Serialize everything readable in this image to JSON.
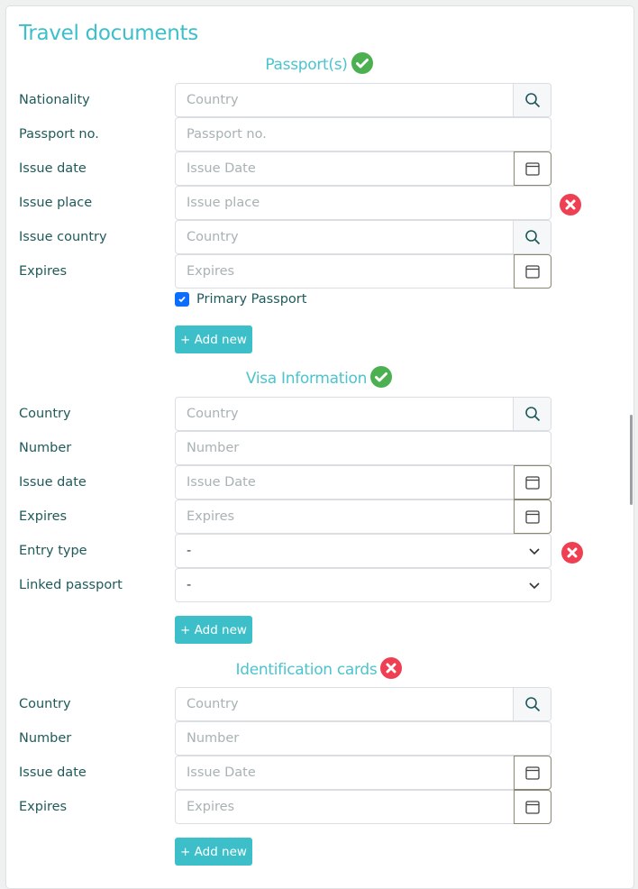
{
  "title": "Travel documents",
  "colors": {
    "accent": "#3cbfc9",
    "success": "#4caf50",
    "error": "#ef3f52",
    "checkbox": "#0d6efd"
  },
  "sections": [
    {
      "heading": "Passport(s)",
      "status": "valid",
      "rows": [
        {
          "label": "Nationality",
          "type": "search",
          "placeholder": "Country",
          "icon": "search-icon"
        },
        {
          "label": "Passport no.",
          "type": "text",
          "placeholder": "Passport no."
        },
        {
          "label": "Issue date",
          "type": "date",
          "placeholder": "Issue Date",
          "icon": "calendar-icon"
        },
        {
          "label": "Issue place",
          "type": "text",
          "placeholder": "Issue place",
          "status": "error"
        },
        {
          "label": "Issue country",
          "type": "search",
          "placeholder": "Country",
          "icon": "search-icon"
        },
        {
          "label": "Expires",
          "type": "date",
          "placeholder": "Expires",
          "icon": "calendar-icon"
        }
      ],
      "checkbox": {
        "label": "Primary Passport",
        "checked": true
      },
      "add_label": "+ Add new"
    },
    {
      "heading": "Visa Information",
      "status": "valid",
      "rows": [
        {
          "label": "Country",
          "type": "search",
          "placeholder": "Country",
          "icon": "search-icon"
        },
        {
          "label": "Number",
          "type": "text",
          "placeholder": "Number"
        },
        {
          "label": "Issue date",
          "type": "date",
          "placeholder": "Issue Date",
          "icon": "calendar-icon"
        },
        {
          "label": "Expires",
          "type": "date",
          "placeholder": "Expires",
          "icon": "calendar-icon"
        },
        {
          "label": "Entry type",
          "type": "select",
          "value": "-",
          "status": "error"
        },
        {
          "label": "Linked passport",
          "type": "select",
          "value": "-"
        }
      ],
      "add_label": "+ Add new"
    },
    {
      "heading": "Identification cards",
      "status": "error",
      "rows": [
        {
          "label": "Country",
          "type": "search",
          "placeholder": "Country",
          "icon": "search-icon"
        },
        {
          "label": "Number",
          "type": "text",
          "placeholder": "Number"
        },
        {
          "label": "Issue date",
          "type": "date",
          "placeholder": "Issue Date",
          "icon": "calendar-icon"
        },
        {
          "label": "Expires",
          "type": "date",
          "placeholder": "Expires",
          "icon": "calendar-icon"
        }
      ],
      "add_label": "+ Add new"
    }
  ]
}
